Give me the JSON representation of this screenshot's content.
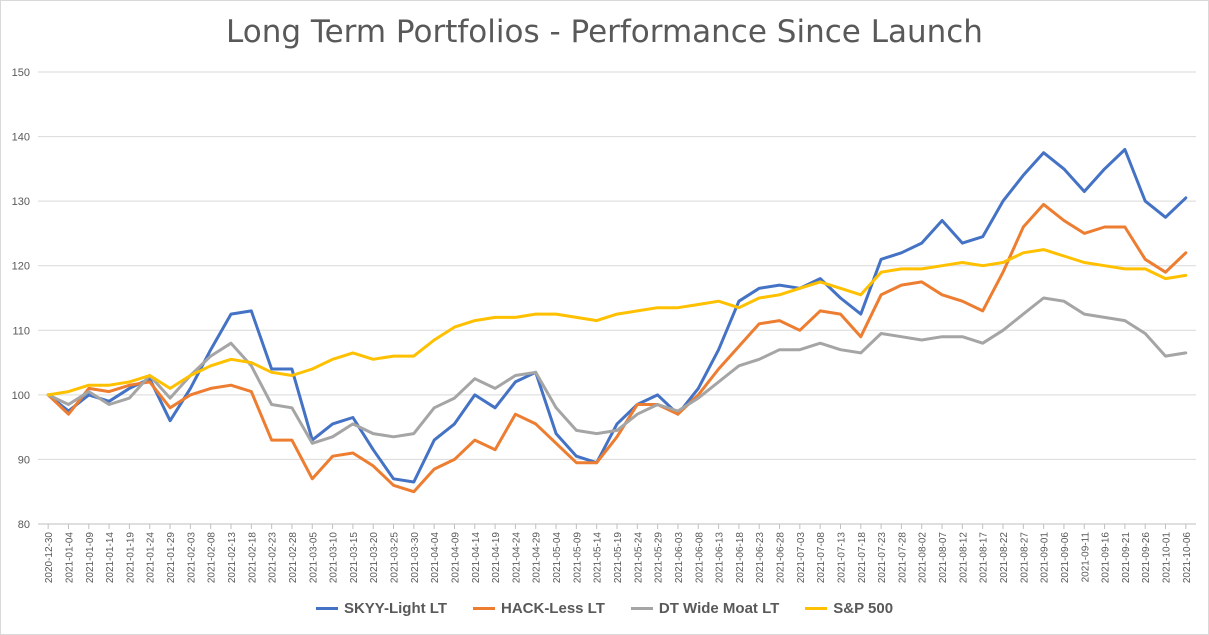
{
  "chart_data": {
    "type": "line",
    "title": "Long Term Portfolios - Performance Since Launch",
    "xlabel": "",
    "ylabel": "",
    "ylim": [
      80,
      150
    ],
    "yticks": [
      "80",
      "90",
      "100",
      "110",
      "120",
      "130",
      "140",
      "150"
    ],
    "grid": true,
    "legend_position": "bottom",
    "x": [
      "2020-12-30",
      "2021-01-04",
      "2021-01-09",
      "2021-01-14",
      "2021-01-19",
      "2021-01-24",
      "2021-01-29",
      "2021-02-03",
      "2021-02-08",
      "2021-02-13",
      "2021-02-18",
      "2021-02-23",
      "2021-02-28",
      "2021-03-05",
      "2021-03-10",
      "2021-03-15",
      "2021-03-20",
      "2021-03-25",
      "2021-03-30",
      "2021-04-04",
      "2021-04-09",
      "2021-04-14",
      "2021-04-19",
      "2021-04-24",
      "2021-04-29",
      "2021-05-04",
      "2021-05-09",
      "2021-05-14",
      "2021-05-19",
      "2021-05-24",
      "2021-05-29",
      "2021-06-03",
      "2021-06-08",
      "2021-06-13",
      "2021-06-18",
      "2021-06-23",
      "2021-06-28",
      "2021-07-03",
      "2021-07-08",
      "2021-07-13",
      "2021-07-18",
      "2021-07-23",
      "2021-07-28",
      "2021-08-02",
      "2021-08-07",
      "2021-08-12",
      "2021-08-17",
      "2021-08-22",
      "2021-08-27",
      "2021-09-01",
      "2021-09-06",
      "2021-09-11",
      "2021-09-16",
      "2021-09-21",
      "2021-09-26",
      "2021-10-01",
      "2021-10-06"
    ],
    "series": [
      {
        "name": "SKYY-Light LT",
        "color": "#4472c4",
        "values": [
          100,
          97.5,
          100,
          99,
          101,
          102.5,
          96,
          101,
          107,
          112.5,
          113,
          104,
          104,
          93,
          95.5,
          96.5,
          91.5,
          87,
          86.5,
          93,
          95.5,
          100,
          98,
          102,
          103.5,
          94,
          90.5,
          89.5,
          95.5,
          98.5,
          100,
          97,
          101,
          107,
          114.5,
          116.5,
          117,
          116.5,
          118,
          115,
          112.5,
          121,
          122,
          123.5,
          127,
          123.5,
          124.5,
          130,
          134,
          137.5,
          135,
          131.5,
          135,
          138,
          130,
          127.5,
          130.5
        ]
      },
      {
        "name": "HACK-Less LT",
        "color": "#ed7d31",
        "values": [
          100,
          97,
          101,
          100.5,
          101.5,
          102,
          98,
          100,
          101,
          101.5,
          100.5,
          93,
          93,
          87,
          90.5,
          91,
          89,
          86,
          85,
          88.5,
          90,
          93,
          91.5,
          97,
          95.5,
          92.5,
          89.5,
          89.5,
          93.5,
          98.5,
          98.5,
          97,
          100,
          104,
          107.5,
          111,
          111.5,
          110,
          113,
          112.5,
          109,
          115.5,
          117,
          117.5,
          115.5,
          114.5,
          113,
          119,
          126,
          129.5,
          127,
          125,
          126,
          126,
          121,
          119,
          122
        ]
      },
      {
        "name": "DT Wide Moat LT",
        "color": "#a5a5a5",
        "values": [
          100,
          98.5,
          100.5,
          98.5,
          99.5,
          103,
          99.5,
          103,
          106,
          108,
          104.5,
          98.5,
          98,
          92.5,
          93.5,
          95.5,
          94,
          93.5,
          94,
          98,
          99.5,
          102.5,
          101,
          103,
          103.5,
          98,
          94.5,
          94,
          94.5,
          97,
          98.5,
          97.5,
          99.5,
          102,
          104.5,
          105.5,
          107,
          107,
          108,
          107,
          106.5,
          109.5,
          109,
          108.5,
          109,
          109,
          108,
          110,
          112.5,
          115,
          114.5,
          112.5,
          112,
          111.5,
          109.5,
          106,
          106.5
        ]
      },
      {
        "name": "S&P 500",
        "color": "#ffc000",
        "values": [
          100,
          100.5,
          101.5,
          101.5,
          102,
          103,
          101,
          103,
          104.5,
          105.5,
          105,
          103.5,
          103,
          104,
          105.5,
          106.5,
          105.5,
          106,
          106,
          108.5,
          110.5,
          111.5,
          112,
          112,
          112.5,
          112.5,
          112,
          111.5,
          112.5,
          113,
          113.5,
          113.5,
          114,
          114.5,
          113.5,
          115,
          115.5,
          116.5,
          117.5,
          116.5,
          115.5,
          119,
          119.5,
          119.5,
          120,
          120.5,
          120,
          120.5,
          122,
          122.5,
          121.5,
          120.5,
          120,
          119.5,
          119.5,
          118,
          118.5
        ]
      }
    ]
  }
}
